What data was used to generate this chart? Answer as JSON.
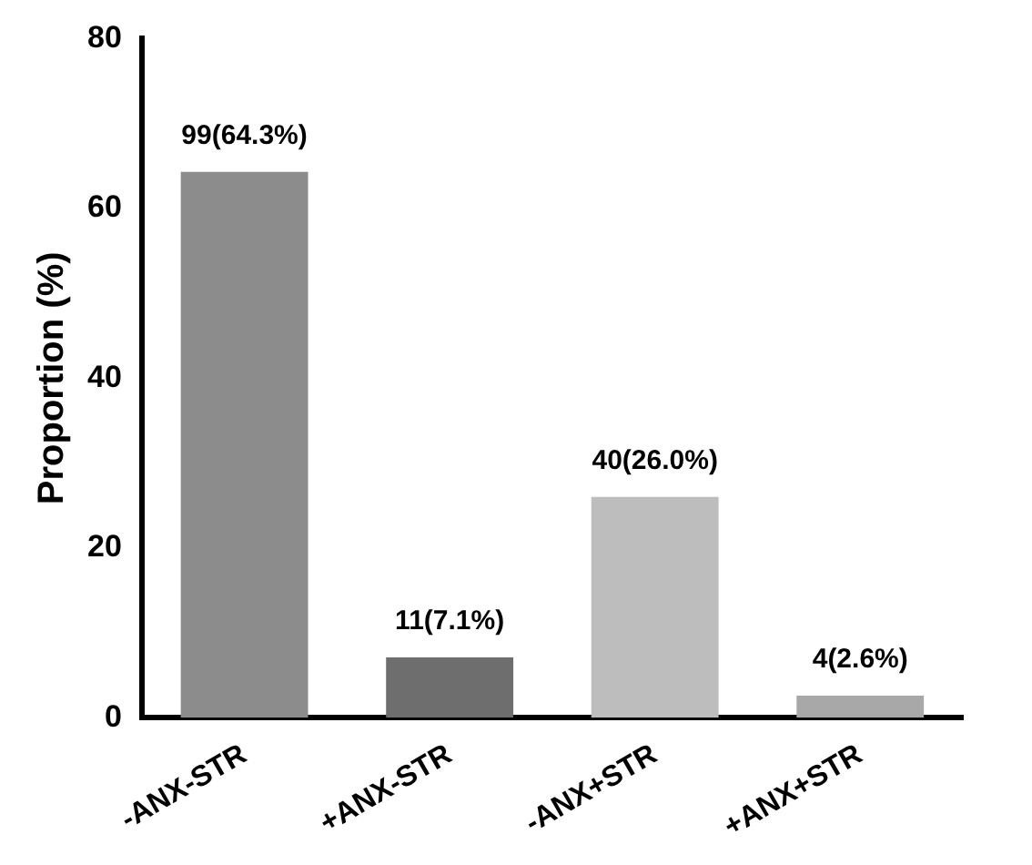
{
  "chart_data": {
    "type": "bar",
    "ylabel": "Proportion (%)",
    "categories": [
      "-ANX-STR",
      "+ANX-STR",
      "-ANX+STR",
      "+ANX+STR"
    ],
    "values": [
      64.3,
      7.1,
      26.0,
      2.6
    ],
    "value_labels": [
      "99(64.3%)",
      "11(7.1%)",
      "40(26.0%)",
      "4(2.6%)"
    ],
    "colors": [
      "#8c8c8c",
      "#6e6e6e",
      "#bdbdbd",
      "#a8a8a8"
    ],
    "ylim": [
      0,
      80
    ],
    "yticks": [
      0,
      20,
      40,
      60,
      80
    ],
    "grid": false,
    "legend": false
  }
}
